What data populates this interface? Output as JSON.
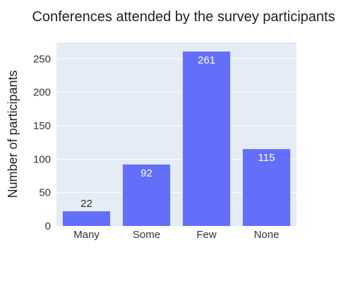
{
  "chart_data": {
    "type": "bar",
    "title": "Conferences attended by the survey participants",
    "xlabel": "",
    "ylabel": "Number of participants",
    "categories": [
      "Many",
      "Some",
      "Few",
      "None"
    ],
    "values": [
      22,
      92,
      261,
      115
    ],
    "ylim": [
      0,
      274.7
    ],
    "yticks": [
      0,
      50,
      100,
      150,
      200,
      250
    ],
    "grid": true,
    "legend": "none",
    "colors": {
      "bar": "#636efa",
      "plot_bg": "#e5ecf6",
      "grid": "#ffffff",
      "label_inside": "#ffffff",
      "label_outside": "#2a2a2a"
    }
  }
}
